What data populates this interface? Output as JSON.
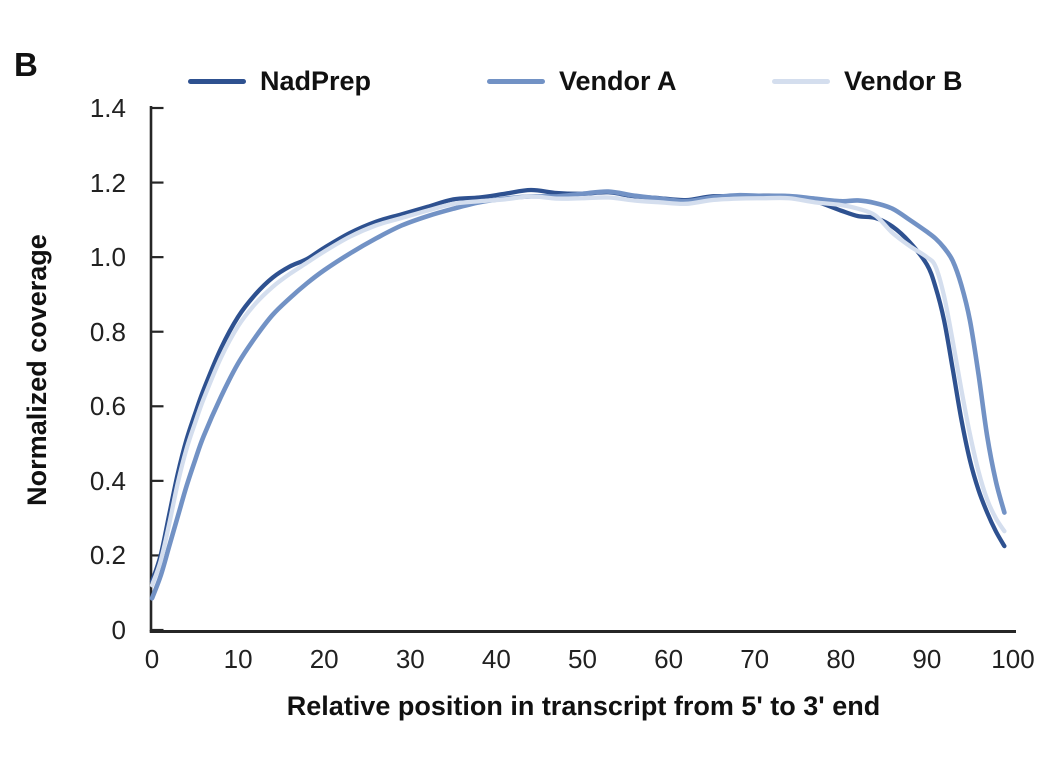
{
  "panel_label": "B",
  "colors": {
    "axis": "#262626",
    "nadprep": "#2e5190",
    "vendor_a": "#7292c5",
    "vendor_b": "#d4deee",
    "background": "#ffffff"
  },
  "chart_data": {
    "type": "line",
    "title": "",
    "xlabel": "Relative position in transcript from 5' to 3' end",
    "ylabel": "Normalized coverage",
    "xlim": [
      0,
      100
    ],
    "ylim": [
      0,
      1.4
    ],
    "x_ticks": [
      0,
      10,
      20,
      30,
      40,
      50,
      60,
      70,
      80,
      90,
      100
    ],
    "y_ticks": [
      0,
      0.2,
      0.4,
      0.6,
      0.8,
      1.0,
      1.2,
      1.4
    ],
    "y_tick_labels": [
      "0",
      "0.2",
      "0.4",
      "0.6",
      "0.8",
      "1.0",
      "1.2",
      "1.4"
    ],
    "grid": false,
    "legend_position": "top",
    "x": [
      0,
      1,
      2,
      3,
      4,
      5,
      6,
      8,
      10,
      12,
      14,
      16,
      18,
      20,
      23,
      26,
      29,
      32,
      35,
      38,
      41,
      44,
      47,
      50,
      53,
      56,
      59,
      62,
      65,
      68,
      71,
      74,
      77,
      80,
      82,
      84,
      86,
      88,
      90,
      91,
      92,
      93,
      94,
      95,
      96,
      97,
      98,
      99
    ],
    "series": [
      {
        "name": "NadPrep",
        "color": "#2e5190",
        "values": [
          0.13,
          0.2,
          0.31,
          0.42,
          0.51,
          0.58,
          0.645,
          0.755,
          0.84,
          0.9,
          0.945,
          0.975,
          0.995,
          1.025,
          1.065,
          1.095,
          1.115,
          1.135,
          1.155,
          1.16,
          1.17,
          1.18,
          1.172,
          1.17,
          1.174,
          1.163,
          1.158,
          1.153,
          1.163,
          1.163,
          1.165,
          1.163,
          1.15,
          1.125,
          1.11,
          1.105,
          1.082,
          1.04,
          0.98,
          0.92,
          0.83,
          0.7,
          0.565,
          0.455,
          0.375,
          0.315,
          0.265,
          0.225
        ]
      },
      {
        "name": "Vendor A",
        "color": "#7292c5",
        "values": [
          0.085,
          0.145,
          0.225,
          0.305,
          0.385,
          0.455,
          0.52,
          0.625,
          0.715,
          0.785,
          0.845,
          0.89,
          0.93,
          0.965,
          1.01,
          1.05,
          1.085,
          1.11,
          1.13,
          1.147,
          1.157,
          1.163,
          1.163,
          1.17,
          1.176,
          1.165,
          1.157,
          1.15,
          1.16,
          1.166,
          1.164,
          1.164,
          1.157,
          1.15,
          1.152,
          1.145,
          1.13,
          1.1,
          1.068,
          1.05,
          1.025,
          0.99,
          0.925,
          0.83,
          0.685,
          0.52,
          0.4,
          0.315
        ]
      },
      {
        "name": "Vendor B",
        "color": "#d4deee",
        "values": [
          0.12,
          0.185,
          0.285,
          0.395,
          0.485,
          0.555,
          0.62,
          0.73,
          0.815,
          0.875,
          0.92,
          0.955,
          0.985,
          1.015,
          1.055,
          1.085,
          1.105,
          1.125,
          1.143,
          1.15,
          1.155,
          1.163,
          1.157,
          1.158,
          1.16,
          1.152,
          1.147,
          1.143,
          1.153,
          1.157,
          1.158,
          1.158,
          1.147,
          1.14,
          1.13,
          1.112,
          1.065,
          1.03,
          1.0,
          0.975,
          0.895,
          0.775,
          0.645,
          0.525,
          0.425,
          0.35,
          0.3,
          0.265
        ]
      }
    ]
  }
}
